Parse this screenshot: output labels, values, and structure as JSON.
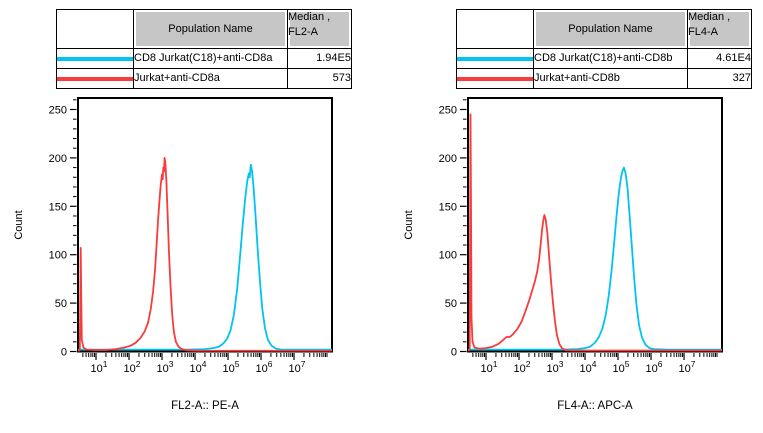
{
  "colors": {
    "cyan": "#00C3F2",
    "red": "#FA3B3B",
    "table_header_bg": "#C6C6C6",
    "axis": "#000000"
  },
  "panels": [
    {
      "id": "fl2a",
      "table": {
        "header": {
          "population": "Population Name",
          "median_line1": "Median ,",
          "median_line2": "FL2-A"
        },
        "rows": [
          {
            "swatch_color": "#00C3F2",
            "population": "CD8 Jurkat(C18)+anti-CD8a",
            "median": "1.94E5"
          },
          {
            "swatch_color": "#FA3B3B",
            "population": "Jurkat+anti-CD8a",
            "median": "573"
          }
        ]
      }
    },
    {
      "id": "fl4a",
      "table": {
        "header": {
          "population": "Population Name",
          "median_line1": "Median ,",
          "median_line2": "FL4-A"
        },
        "rows": [
          {
            "swatch_color": "#00C3F2",
            "population": "CD8 Jurkat(C18)+anti-CD8b",
            "median": "4.61E4"
          },
          {
            "swatch_color": "#FA3B3B",
            "population": "Jurkat+anti-CD8b",
            "median": "327"
          }
        ]
      }
    }
  ],
  "chart_data": [
    {
      "type": "line",
      "subtype": "flow-cytometry-histogram",
      "title": "",
      "xlabel": "FL2-A:: PE-A",
      "ylabel": "Count",
      "x_scale": "log10",
      "x_domain_log10": [
        0.48,
        8.15
      ],
      "x_decades_labeled": [
        1,
        2,
        3,
        4,
        5,
        6,
        7
      ],
      "ylim": [
        0,
        260
      ],
      "yticks": [
        0,
        50,
        100,
        150,
        200,
        250
      ],
      "y_minor_step": 10,
      "grid": false,
      "legend_position": "table-above",
      "series": [
        {
          "name": "CD8 Jurkat(C18)+anti-CD8a",
          "color": "#00C3F2",
          "median": "1.94E5",
          "peak": {
            "x": 480000.0,
            "count": 193
          },
          "points": [
            [
              0.48,
              2
            ],
            [
              1.0,
              2
            ],
            [
              2.0,
              2
            ],
            [
              3.0,
              2
            ],
            [
              3.8,
              2
            ],
            [
              4.3,
              2.5
            ],
            [
              4.55,
              3.5
            ],
            [
              4.72,
              5
            ],
            [
              4.85,
              8
            ],
            [
              4.97,
              13
            ],
            [
              5.08,
              22
            ],
            [
              5.18,
              38
            ],
            [
              5.28,
              65
            ],
            [
              5.37,
              100
            ],
            [
              5.45,
              132
            ],
            [
              5.52,
              158
            ],
            [
              5.58,
              175
            ],
            [
              5.63,
              184
            ],
            [
              5.66,
              180
            ],
            [
              5.69,
              193
            ],
            [
              5.73,
              186
            ],
            [
              5.78,
              168
            ],
            [
              5.84,
              138
            ],
            [
              5.9,
              105
            ],
            [
              5.97,
              72
            ],
            [
              6.04,
              44
            ],
            [
              6.12,
              24
            ],
            [
              6.21,
              12
            ],
            [
              6.32,
              6
            ],
            [
              6.45,
              3
            ],
            [
              6.62,
              2
            ],
            [
              7.0,
              2
            ],
            [
              8.13,
              2
            ]
          ]
        },
        {
          "name": "Jurkat+anti-CD8a",
          "color": "#FA3B3B",
          "median": "573",
          "peak": {
            "x": 1200.0,
            "count": 200
          },
          "points": [
            [
              0.48,
              0.7
            ],
            [
              0.51,
              1.5
            ],
            [
              0.525,
              50
            ],
            [
              0.535,
              107
            ],
            [
              0.55,
              60
            ],
            [
              0.57,
              12
            ],
            [
              0.62,
              4
            ],
            [
              0.72,
              2
            ],
            [
              0.95,
              1.5
            ],
            [
              1.3,
              1.5
            ],
            [
              1.6,
              2.5
            ],
            [
              1.85,
              4
            ],
            [
              2.05,
              6
            ],
            [
              2.2,
              9
            ],
            [
              2.35,
              14
            ],
            [
              2.48,
              21
            ],
            [
              2.58,
              30
            ],
            [
              2.66,
              44
            ],
            [
              2.73,
              62
            ],
            [
              2.79,
              85
            ],
            [
              2.84,
              112
            ],
            [
              2.88,
              135
            ],
            [
              2.92,
              155
            ],
            [
              2.96,
              172
            ],
            [
              3.0,
              183
            ],
            [
              3.02,
              178
            ],
            [
              3.04,
              190
            ],
            [
              3.06,
              186
            ],
            [
              3.08,
              200
            ],
            [
              3.1,
              196
            ],
            [
              3.13,
              178
            ],
            [
              3.17,
              142
            ],
            [
              3.21,
              104
            ],
            [
              3.26,
              66
            ],
            [
              3.31,
              38
            ],
            [
              3.36,
              20
            ],
            [
              3.42,
              10
            ],
            [
              3.5,
              5
            ],
            [
              3.6,
              2.5
            ],
            [
              3.75,
              1.2
            ],
            [
              4.1,
              0.8
            ],
            [
              8.13,
              0.7
            ]
          ]
        }
      ]
    },
    {
      "type": "line",
      "subtype": "flow-cytometry-histogram",
      "title": "",
      "xlabel": "FL4-A:: APC-A",
      "ylabel": "Count",
      "x_scale": "log10",
      "x_domain_log10": [
        0.48,
        8.15
      ],
      "x_decades_labeled": [
        1,
        2,
        3,
        4,
        5,
        6,
        7
      ],
      "ylim": [
        0,
        260
      ],
      "yticks": [
        0,
        50,
        100,
        150,
        200,
        250
      ],
      "y_minor_step": 10,
      "grid": false,
      "legend_position": "table-above",
      "series": [
        {
          "name": "CD8 Jurkat(C18)+anti-CD8b",
          "color": "#00C3F2",
          "median": "4.61E4",
          "peak": {
            "x": 150000.0,
            "count": 190
          },
          "points": [
            [
              0.48,
              2
            ],
            [
              1.5,
              2
            ],
            [
              2.5,
              2
            ],
            [
              3.3,
              2
            ],
            [
              3.75,
              2.5
            ],
            [
              4.0,
              3.5
            ],
            [
              4.15,
              5
            ],
            [
              4.3,
              9
            ],
            [
              4.42,
              15
            ],
            [
              4.53,
              24
            ],
            [
              4.63,
              38
            ],
            [
              4.72,
              58
            ],
            [
              4.81,
              85
            ],
            [
              4.89,
              115
            ],
            [
              4.96,
              142
            ],
            [
              5.03,
              165
            ],
            [
              5.09,
              180
            ],
            [
              5.14,
              187
            ],
            [
              5.18,
              190
            ],
            [
              5.23,
              184
            ],
            [
              5.29,
              168
            ],
            [
              5.35,
              142
            ],
            [
              5.42,
              108
            ],
            [
              5.49,
              75
            ],
            [
              5.56,
              48
            ],
            [
              5.64,
              27
            ],
            [
              5.73,
              14
            ],
            [
              5.83,
              7
            ],
            [
              5.95,
              3.5
            ],
            [
              6.1,
              2.5
            ],
            [
              6.5,
              2
            ],
            [
              8.13,
              2
            ]
          ]
        },
        {
          "name": "Jurkat+anti-CD8b",
          "color": "#FA3B3B",
          "median": "327",
          "peak": {
            "x": 590.0,
            "count": 141
          },
          "points": [
            [
              0.48,
              1
            ],
            [
              0.505,
              2
            ],
            [
              0.52,
              140
            ],
            [
              0.53,
              245
            ],
            [
              0.545,
              150
            ],
            [
              0.56,
              35
            ],
            [
              0.59,
              10
            ],
            [
              0.65,
              4
            ],
            [
              0.8,
              3
            ],
            [
              1.0,
              3.5
            ],
            [
              1.2,
              5
            ],
            [
              1.38,
              8
            ],
            [
              1.52,
              12
            ],
            [
              1.62,
              15
            ],
            [
              1.72,
              15
            ],
            [
              1.82,
              18
            ],
            [
              1.95,
              23
            ],
            [
              2.08,
              31
            ],
            [
              2.2,
              42
            ],
            [
              2.3,
              52
            ],
            [
              2.4,
              63
            ],
            [
              2.48,
              72
            ],
            [
              2.55,
              82
            ],
            [
              2.61,
              95
            ],
            [
              2.66,
              112
            ],
            [
              2.7,
              126
            ],
            [
              2.74,
              136
            ],
            [
              2.77,
              141
            ],
            [
              2.81,
              136
            ],
            [
              2.86,
              122
            ],
            [
              2.91,
              100
            ],
            [
              2.97,
              73
            ],
            [
              3.03,
              50
            ],
            [
              3.09,
              31
            ],
            [
              3.15,
              17
            ],
            [
              3.22,
              8
            ],
            [
              3.3,
              3.5
            ],
            [
              3.4,
              1.5
            ],
            [
              3.6,
              1
            ],
            [
              8.13,
              1
            ]
          ]
        }
      ]
    }
  ]
}
